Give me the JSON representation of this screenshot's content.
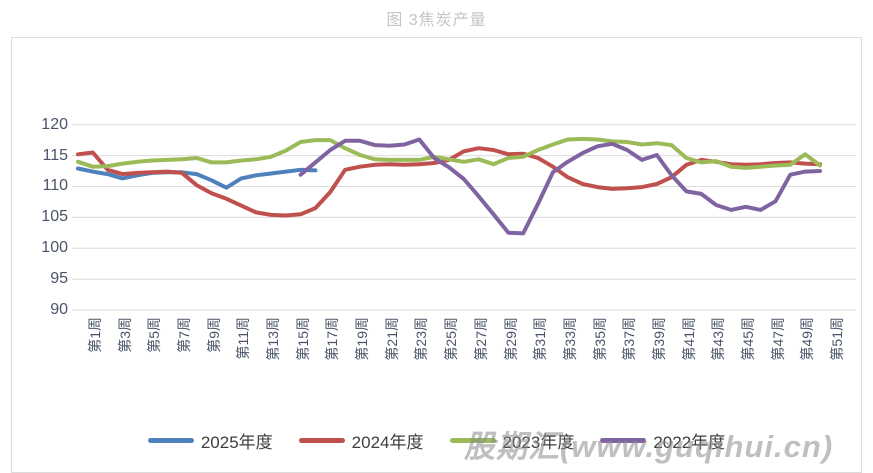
{
  "title": "图 3焦炭产量",
  "watermark": "股期汇(www.guqihui.cn)",
  "chart_data": {
    "type": "line",
    "title": "图 3焦炭产量",
    "unit_hint": "焦炭产量 (weekly)",
    "grid": "horizontal",
    "legend_position": "bottom",
    "x_axis": {
      "weeks_total": 51,
      "tick_labels": [
        "第1周",
        "第3周",
        "第5周",
        "第7周",
        "第9周",
        "第11周",
        "第13周",
        "第15周",
        "第17周",
        "第19周",
        "第21周",
        "第23周",
        "第25周",
        "第27周",
        "第29周",
        "第31周",
        "第33周",
        "第35周",
        "第37周",
        "第39周",
        "第41周",
        "第43周",
        "第45周",
        "第47周",
        "第49周",
        "第51周"
      ],
      "tick_weeks": [
        1,
        3,
        5,
        7,
        9,
        11,
        13,
        15,
        17,
        19,
        21,
        23,
        25,
        27,
        29,
        31,
        33,
        35,
        37,
        39,
        41,
        43,
        45,
        47,
        49,
        51
      ]
    },
    "y_axis": {
      "min": 90,
      "max": 120,
      "step": 5,
      "ticks": [
        120,
        115,
        110,
        105,
        100,
        95,
        90
      ]
    },
    "series": [
      {
        "name": "2025年度",
        "color": "#4F81BD",
        "start_week": 1,
        "values": [
          112.9,
          112.4,
          112.0,
          111.3,
          111.8,
          112.2,
          112.3,
          112.3,
          112.0,
          111.0,
          109.8,
          111.3,
          111.8,
          112.1,
          112.4,
          112.7,
          112.6
        ]
      },
      {
        "name": "2024年度",
        "color": "#C0504D",
        "start_week": 1,
        "values": [
          115.2,
          115.5,
          112.7,
          112.0,
          112.2,
          112.3,
          112.4,
          112.2,
          110.2,
          108.9,
          108.0,
          106.9,
          105.8,
          105.4,
          105.3,
          105.5,
          106.5,
          109.1,
          112.7,
          113.2,
          113.5,
          113.6,
          113.5,
          113.6,
          113.8,
          114.3,
          115.7,
          116.2,
          115.9,
          115.2,
          115.3,
          114.6,
          113.2,
          111.5,
          110.4,
          109.9,
          109.6,
          109.7,
          109.9,
          110.4,
          111.5,
          113.5,
          114.3,
          114.0,
          113.6,
          113.5,
          113.6,
          113.8,
          113.9,
          113.7,
          113.6
        ]
      },
      {
        "name": "2023年度",
        "color": "#9BBB59",
        "start_week": 1,
        "values": [
          114.0,
          113.2,
          113.3,
          113.7,
          114.0,
          114.2,
          114.3,
          114.4,
          114.6,
          113.9,
          113.9,
          114.2,
          114.4,
          114.8,
          115.8,
          117.2,
          117.5,
          117.5,
          116.2,
          115.1,
          114.4,
          114.3,
          114.3,
          114.3,
          114.8,
          114.4,
          114.0,
          114.4,
          113.6,
          114.6,
          114.8,
          115.9,
          116.8,
          117.6,
          117.7,
          117.6,
          117.3,
          117.2,
          116.8,
          117.0,
          116.7,
          114.6,
          113.9,
          114.1,
          113.2,
          113.0,
          113.2,
          113.4,
          113.5,
          115.2,
          113.4
        ]
      },
      {
        "name": "2022年度",
        "color": "#8064A2",
        "start_week": 16,
        "values": [
          111.9,
          113.9,
          115.9,
          117.4,
          117.4,
          116.7,
          116.6,
          116.8,
          117.6,
          114.6,
          113.1,
          111.2,
          108.4,
          105.5,
          102.5,
          102.4,
          107.2,
          112.3,
          114.0,
          115.4,
          116.5,
          116.9,
          115.9,
          114.3,
          115.1,
          111.8,
          109.2,
          108.8,
          107.0,
          106.2,
          106.7,
          106.2,
          107.6,
          111.9,
          112.4,
          112.5
        ]
      }
    ]
  }
}
